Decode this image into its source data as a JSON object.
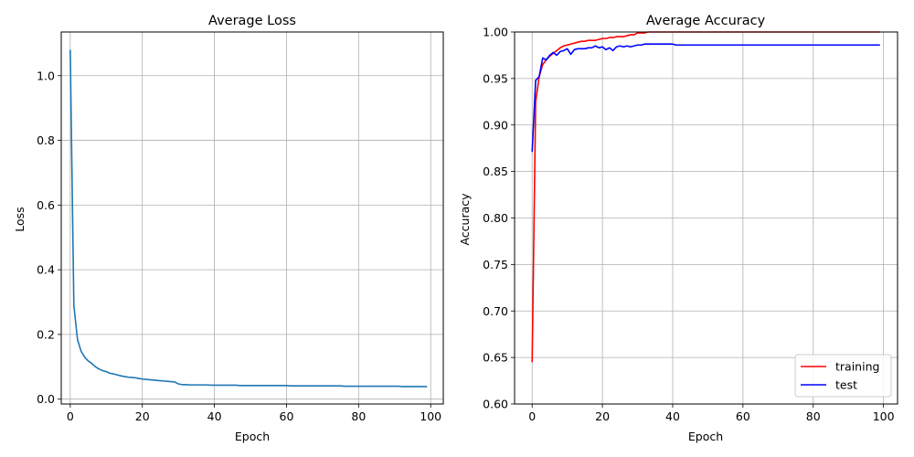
{
  "chart_data": [
    {
      "type": "line",
      "title": "Average Loss",
      "xlabel": "Epoch",
      "ylabel": "Loss",
      "xlim": [
        -2.5,
        103.5
      ],
      "ylim": [
        -0.015,
        1.135
      ],
      "xticks": [
        0,
        20,
        40,
        60,
        80,
        100
      ],
      "yticks": [
        0.0,
        0.2,
        0.4,
        0.6,
        0.8,
        1.0
      ],
      "xtick_labels": [
        "0",
        "20",
        "40",
        "60",
        "80",
        "100"
      ],
      "ytick_labels": [
        "0.0",
        "0.2",
        "0.4",
        "0.6",
        "0.8",
        "1.0"
      ],
      "grid": true,
      "series": [
        {
          "color": "#1f77b4",
          "x": [
            0,
            1,
            2,
            3,
            4,
            5,
            6,
            7,
            8,
            9,
            10,
            11,
            12,
            13,
            14,
            15,
            16,
            17,
            18,
            19,
            20,
            21,
            22,
            23,
            24,
            25,
            26,
            27,
            28,
            29,
            30,
            31,
            32,
            33,
            34,
            35,
            36,
            37,
            38,
            39,
            40,
            41,
            42,
            43,
            44,
            45,
            46,
            47,
            48,
            49,
            50,
            51,
            52,
            53,
            54,
            55,
            56,
            57,
            58,
            59,
            60,
            61,
            62,
            63,
            64,
            65,
            66,
            67,
            68,
            69,
            70,
            71,
            72,
            73,
            74,
            75,
            76,
            77,
            78,
            79,
            80,
            81,
            82,
            83,
            84,
            85,
            86,
            87,
            88,
            89,
            90,
            91,
            92,
            93,
            94,
            95,
            96,
            97,
            98,
            99
          ],
          "y": [
            1.08,
            0.29,
            0.185,
            0.148,
            0.13,
            0.118,
            0.11,
            0.1,
            0.093,
            0.088,
            0.085,
            0.08,
            0.078,
            0.075,
            0.072,
            0.07,
            0.068,
            0.067,
            0.066,
            0.064,
            0.062,
            0.061,
            0.06,
            0.059,
            0.058,
            0.057,
            0.056,
            0.055,
            0.054,
            0.053,
            0.047,
            0.045,
            0.045,
            0.044,
            0.044,
            0.044,
            0.044,
            0.044,
            0.044,
            0.043,
            0.043,
            0.043,
            0.043,
            0.043,
            0.043,
            0.043,
            0.043,
            0.042,
            0.042,
            0.042,
            0.042,
            0.042,
            0.042,
            0.042,
            0.042,
            0.042,
            0.042,
            0.042,
            0.042,
            0.042,
            0.042,
            0.041,
            0.041,
            0.041,
            0.041,
            0.041,
            0.041,
            0.041,
            0.041,
            0.041,
            0.041,
            0.041,
            0.041,
            0.041,
            0.041,
            0.041,
            0.04,
            0.04,
            0.04,
            0.04,
            0.04,
            0.04,
            0.04,
            0.04,
            0.04,
            0.04,
            0.04,
            0.04,
            0.04,
            0.04,
            0.04,
            0.04,
            0.039,
            0.039,
            0.039,
            0.039,
            0.039,
            0.039,
            0.039,
            0.039
          ]
        }
      ]
    },
    {
      "type": "line",
      "title": "Average Accuracy",
      "xlabel": "Epoch",
      "ylabel": "Accuracy",
      "xlim": [
        -5,
        104
      ],
      "ylim": [
        0.6,
        1.0
      ],
      "xticks": [
        0,
        20,
        40,
        60,
        80,
        100
      ],
      "yticks": [
        0.6,
        0.65,
        0.7,
        0.75,
        0.8,
        0.85,
        0.9,
        0.95,
        1.0
      ],
      "xtick_labels": [
        "0",
        "20",
        "40",
        "60",
        "80",
        "100"
      ],
      "ytick_labels": [
        "0.60",
        "0.65",
        "0.70",
        "0.75",
        "0.80",
        "0.85",
        "0.90",
        "0.95",
        "1.00"
      ],
      "grid": true,
      "legend_placement": "lower-right",
      "series": [
        {
          "name": "training",
          "color": "#ff0000",
          "x": [
            0,
            1,
            2,
            3,
            4,
            5,
            6,
            7,
            8,
            9,
            10,
            11,
            12,
            13,
            14,
            15,
            16,
            17,
            18,
            19,
            20,
            21,
            22,
            23,
            24,
            25,
            26,
            27,
            28,
            29,
            30,
            31,
            32,
            33,
            34,
            35,
            36,
            37,
            38,
            39,
            40,
            41,
            42,
            43,
            44,
            45,
            46,
            47,
            48,
            49,
            50,
            51,
            52,
            53,
            54,
            55,
            56,
            57,
            58,
            59,
            60,
            61,
            62,
            63,
            64,
            65,
            66,
            67,
            68,
            69,
            70,
            71,
            72,
            73,
            74,
            75,
            76,
            77,
            78,
            79,
            80,
            81,
            82,
            83,
            84,
            85,
            86,
            87,
            88,
            89,
            90,
            91,
            92,
            93,
            94,
            95,
            96,
            97,
            98,
            99
          ],
          "y": [
            0.645,
            0.925,
            0.952,
            0.965,
            0.97,
            0.974,
            0.977,
            0.98,
            0.983,
            0.985,
            0.986,
            0.987,
            0.988,
            0.989,
            0.99,
            0.99,
            0.991,
            0.991,
            0.991,
            0.992,
            0.993,
            0.993,
            0.994,
            0.994,
            0.995,
            0.995,
            0.995,
            0.996,
            0.997,
            0.997,
            0.999,
            0.999,
            0.999,
            1.0,
            1.0,
            1.0,
            1.0,
            1.0,
            1.0,
            1.0,
            1.0,
            1.0,
            1.0,
            1.0,
            1.0,
            1.0,
            1.0,
            1.0,
            1.0,
            1.0,
            1.0,
            1.0,
            1.0,
            1.0,
            1.0,
            1.0,
            1.0,
            1.0,
            1.0,
            1.0,
            1.0,
            1.0,
            1.0,
            1.0,
            1.0,
            1.0,
            1.0,
            1.0,
            1.0,
            1.0,
            1.0,
            1.0,
            1.0,
            1.0,
            1.0,
            1.0,
            1.0,
            1.0,
            1.0,
            1.0,
            1.0,
            1.0,
            1.0,
            1.0,
            1.0,
            1.0,
            1.0,
            1.0,
            1.0,
            1.0,
            1.0,
            1.0,
            1.0,
            1.0,
            1.0,
            1.0,
            1.0,
            1.0,
            1.0,
            1.0
          ]
        },
        {
          "name": "test",
          "color": "#0000ff",
          "x": [
            0,
            1,
            2,
            3,
            4,
            5,
            6,
            7,
            8,
            9,
            10,
            11,
            12,
            13,
            14,
            15,
            16,
            17,
            18,
            19,
            20,
            21,
            22,
            23,
            24,
            25,
            26,
            27,
            28,
            29,
            30,
            31,
            32,
            33,
            34,
            35,
            36,
            37,
            38,
            39,
            40,
            41,
            42,
            43,
            44,
            45,
            46,
            47,
            48,
            49,
            50,
            51,
            52,
            53,
            54,
            55,
            56,
            57,
            58,
            59,
            60,
            61,
            62,
            63,
            64,
            65,
            66,
            67,
            68,
            69,
            70,
            71,
            72,
            73,
            74,
            75,
            76,
            77,
            78,
            79,
            80,
            81,
            82,
            83,
            84,
            85,
            86,
            87,
            88,
            89,
            90,
            91,
            92,
            93,
            94,
            95,
            96,
            97,
            98,
            99
          ],
          "y": [
            0.871,
            0.948,
            0.952,
            0.972,
            0.97,
            0.975,
            0.978,
            0.975,
            0.979,
            0.98,
            0.982,
            0.976,
            0.981,
            0.982,
            0.982,
            0.982,
            0.983,
            0.983,
            0.985,
            0.983,
            0.984,
            0.981,
            0.983,
            0.98,
            0.984,
            0.985,
            0.984,
            0.985,
            0.984,
            0.985,
            0.986,
            0.986,
            0.987,
            0.987,
            0.987,
            0.987,
            0.987,
            0.987,
            0.987,
            0.987,
            0.987,
            0.986,
            0.986,
            0.986,
            0.986,
            0.986,
            0.986,
            0.986,
            0.986,
            0.986,
            0.986,
            0.986,
            0.986,
            0.986,
            0.986,
            0.986,
            0.986,
            0.986,
            0.986,
            0.986,
            0.986,
            0.986,
            0.986,
            0.986,
            0.986,
            0.986,
            0.986,
            0.986,
            0.986,
            0.986,
            0.986,
            0.986,
            0.986,
            0.986,
            0.986,
            0.986,
            0.986,
            0.986,
            0.986,
            0.986,
            0.986,
            0.986,
            0.986,
            0.986,
            0.986,
            0.986,
            0.986,
            0.986,
            0.986,
            0.986,
            0.986,
            0.986,
            0.986,
            0.986,
            0.986,
            0.986,
            0.986,
            0.986,
            0.986,
            0.986
          ]
        }
      ]
    }
  ]
}
